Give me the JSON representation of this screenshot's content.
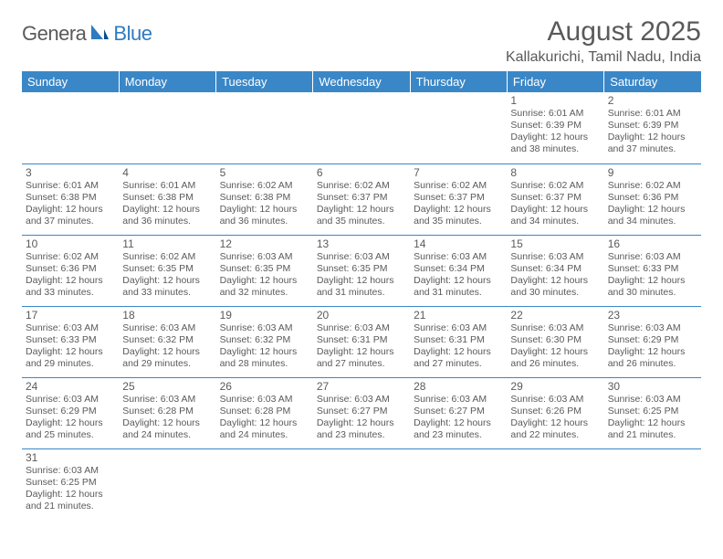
{
  "logo": {
    "text1": "Genera",
    "text2": "Blue"
  },
  "title": "August 2025",
  "location": "Kallakurichi, Tamil Nadu, India",
  "colors": {
    "header_bg": "#3a87c7",
    "header_fg": "#ffffff",
    "cell_border": "#3a87c7",
    "text": "#5a5a5a",
    "page_bg": "#ffffff"
  },
  "weekdays": [
    "Sunday",
    "Monday",
    "Tuesday",
    "Wednesday",
    "Thursday",
    "Friday",
    "Saturday"
  ],
  "calendar": {
    "first_weekday": 5,
    "days": [
      {
        "n": 1,
        "sunrise": "6:01 AM",
        "sunset": "6:39 PM",
        "dl_h": 12,
        "dl_m": 38
      },
      {
        "n": 2,
        "sunrise": "6:01 AM",
        "sunset": "6:39 PM",
        "dl_h": 12,
        "dl_m": 37
      },
      {
        "n": 3,
        "sunrise": "6:01 AM",
        "sunset": "6:38 PM",
        "dl_h": 12,
        "dl_m": 37
      },
      {
        "n": 4,
        "sunrise": "6:01 AM",
        "sunset": "6:38 PM",
        "dl_h": 12,
        "dl_m": 36
      },
      {
        "n": 5,
        "sunrise": "6:02 AM",
        "sunset": "6:38 PM",
        "dl_h": 12,
        "dl_m": 36
      },
      {
        "n": 6,
        "sunrise": "6:02 AM",
        "sunset": "6:37 PM",
        "dl_h": 12,
        "dl_m": 35
      },
      {
        "n": 7,
        "sunrise": "6:02 AM",
        "sunset": "6:37 PM",
        "dl_h": 12,
        "dl_m": 35
      },
      {
        "n": 8,
        "sunrise": "6:02 AM",
        "sunset": "6:37 PM",
        "dl_h": 12,
        "dl_m": 34
      },
      {
        "n": 9,
        "sunrise": "6:02 AM",
        "sunset": "6:36 PM",
        "dl_h": 12,
        "dl_m": 34
      },
      {
        "n": 10,
        "sunrise": "6:02 AM",
        "sunset": "6:36 PM",
        "dl_h": 12,
        "dl_m": 33
      },
      {
        "n": 11,
        "sunrise": "6:02 AM",
        "sunset": "6:35 PM",
        "dl_h": 12,
        "dl_m": 33
      },
      {
        "n": 12,
        "sunrise": "6:03 AM",
        "sunset": "6:35 PM",
        "dl_h": 12,
        "dl_m": 32
      },
      {
        "n": 13,
        "sunrise": "6:03 AM",
        "sunset": "6:35 PM",
        "dl_h": 12,
        "dl_m": 31
      },
      {
        "n": 14,
        "sunrise": "6:03 AM",
        "sunset": "6:34 PM",
        "dl_h": 12,
        "dl_m": 31
      },
      {
        "n": 15,
        "sunrise": "6:03 AM",
        "sunset": "6:34 PM",
        "dl_h": 12,
        "dl_m": 30
      },
      {
        "n": 16,
        "sunrise": "6:03 AM",
        "sunset": "6:33 PM",
        "dl_h": 12,
        "dl_m": 30
      },
      {
        "n": 17,
        "sunrise": "6:03 AM",
        "sunset": "6:33 PM",
        "dl_h": 12,
        "dl_m": 29
      },
      {
        "n": 18,
        "sunrise": "6:03 AM",
        "sunset": "6:32 PM",
        "dl_h": 12,
        "dl_m": 29
      },
      {
        "n": 19,
        "sunrise": "6:03 AM",
        "sunset": "6:32 PM",
        "dl_h": 12,
        "dl_m": 28
      },
      {
        "n": 20,
        "sunrise": "6:03 AM",
        "sunset": "6:31 PM",
        "dl_h": 12,
        "dl_m": 27
      },
      {
        "n": 21,
        "sunrise": "6:03 AM",
        "sunset": "6:31 PM",
        "dl_h": 12,
        "dl_m": 27
      },
      {
        "n": 22,
        "sunrise": "6:03 AM",
        "sunset": "6:30 PM",
        "dl_h": 12,
        "dl_m": 26
      },
      {
        "n": 23,
        "sunrise": "6:03 AM",
        "sunset": "6:29 PM",
        "dl_h": 12,
        "dl_m": 26
      },
      {
        "n": 24,
        "sunrise": "6:03 AM",
        "sunset": "6:29 PM",
        "dl_h": 12,
        "dl_m": 25
      },
      {
        "n": 25,
        "sunrise": "6:03 AM",
        "sunset": "6:28 PM",
        "dl_h": 12,
        "dl_m": 24
      },
      {
        "n": 26,
        "sunrise": "6:03 AM",
        "sunset": "6:28 PM",
        "dl_h": 12,
        "dl_m": 24
      },
      {
        "n": 27,
        "sunrise": "6:03 AM",
        "sunset": "6:27 PM",
        "dl_h": 12,
        "dl_m": 23
      },
      {
        "n": 28,
        "sunrise": "6:03 AM",
        "sunset": "6:27 PM",
        "dl_h": 12,
        "dl_m": 23
      },
      {
        "n": 29,
        "sunrise": "6:03 AM",
        "sunset": "6:26 PM",
        "dl_h": 12,
        "dl_m": 22
      },
      {
        "n": 30,
        "sunrise": "6:03 AM",
        "sunset": "6:25 PM",
        "dl_h": 12,
        "dl_m": 21
      },
      {
        "n": 31,
        "sunrise": "6:03 AM",
        "sunset": "6:25 PM",
        "dl_h": 12,
        "dl_m": 21
      }
    ]
  },
  "labels": {
    "sunrise": "Sunrise:",
    "sunset": "Sunset:",
    "daylight": "Daylight:",
    "hours_word": "hours",
    "and_word": "and",
    "minutes_word": "minutes."
  }
}
